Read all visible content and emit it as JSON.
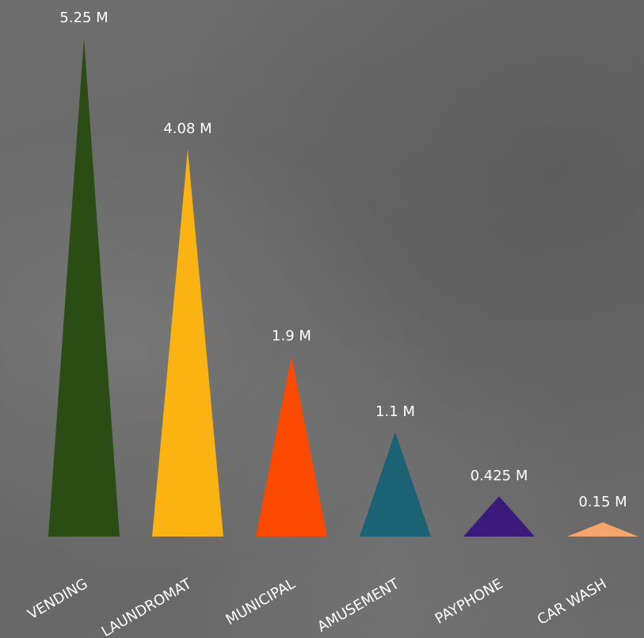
{
  "chart_data": {
    "type": "bar",
    "mark": "triangle",
    "categories": [
      "VENDING",
      "LAUNDROMAT",
      "MUNICIPAL",
      "AMUSEMENT",
      "PAYPHONE",
      "CAR WASH"
    ],
    "values": [
      5.25,
      4.08,
      1.9,
      1.1,
      0.425,
      0.15
    ],
    "data_labels": [
      "5.25 M",
      "4.08 M",
      "1.9 M",
      "1.1 M",
      "0.425 M",
      "0.15 M"
    ],
    "colors": [
      "#2b4d15",
      "#fbb314",
      "#fa4a00",
      "#1b6275",
      "#3a1a7a",
      "#f5a46b"
    ],
    "background": "#696969",
    "title": "",
    "xlabel": "",
    "ylabel": "",
    "ylim": [
      0,
      5.25
    ],
    "grid": false,
    "legend": "none"
  }
}
